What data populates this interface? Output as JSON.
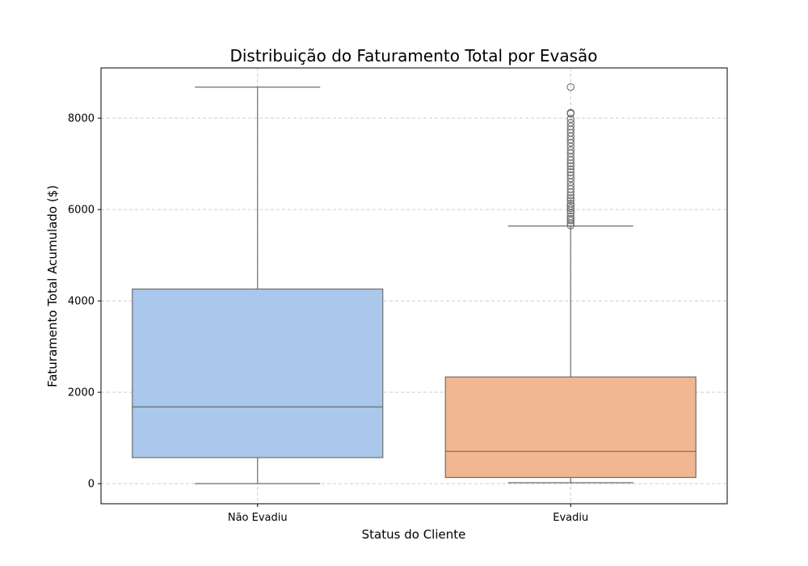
{
  "chart_data": {
    "type": "box",
    "title": "Distribuição do Faturamento Total por Evasão",
    "xlabel": "Status do Cliente",
    "ylabel": "Faturamento Total Acumulado ($)",
    "ylim": [
      -440,
      9100
    ],
    "yticks": [
      0,
      2000,
      4000,
      6000,
      8000
    ],
    "grid": true,
    "categories": [
      "Não Evadiu",
      "Evadiu"
    ],
    "boxes": [
      {
        "name": "Não Evadiu",
        "color": "#a9c8ec",
        "whisker_low": 0,
        "q1": 570,
        "median": 1680,
        "q3": 4260,
        "whisker_high": 8680,
        "outliers": []
      },
      {
        "name": "Evadiu",
        "color": "#f0b792",
        "whisker_low": 20,
        "q1": 135,
        "median": 705,
        "q3": 2335,
        "whisker_high": 5640,
        "outliers": [
          5650,
          5700,
          5760,
          5800,
          5850,
          5920,
          5980,
          6030,
          6080,
          6130,
          6200,
          6250,
          6310,
          6380,
          6450,
          6520,
          6600,
          6680,
          6750,
          6820,
          6880,
          6950,
          7010,
          7080,
          7150,
          7230,
          7300,
          7380,
          7460,
          7530,
          7600,
          7680,
          7750,
          7820,
          7900,
          7980,
          8100,
          8120,
          8680
        ]
      }
    ]
  }
}
